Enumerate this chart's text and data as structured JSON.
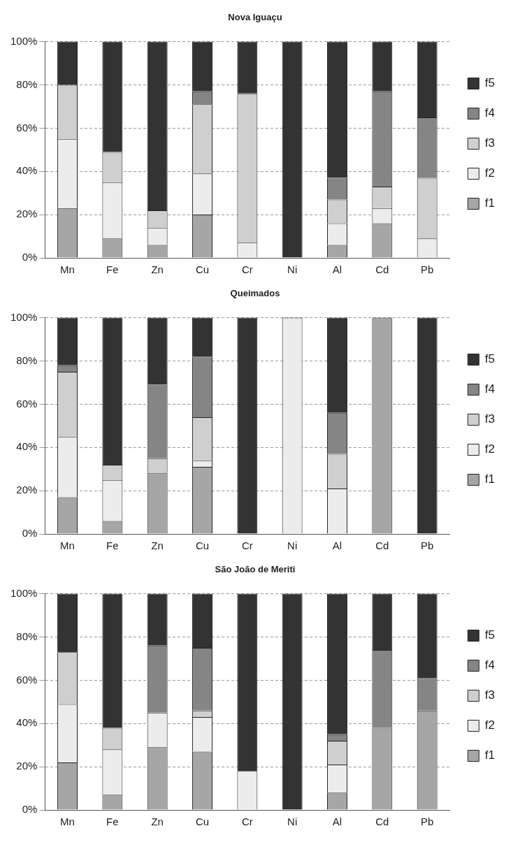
{
  "chart_data": [
    {
      "type": "bar",
      "stacked": true,
      "title": "Nova Iguaçu",
      "categories": [
        "Mn",
        "Fe",
        "Zn",
        "Cu",
        "Cr",
        "Ni",
        "Al",
        "Cd",
        "Pb"
      ],
      "series": [
        {
          "name": "f1",
          "color": "#a6a6a6",
          "values": [
            23,
            9,
            6,
            20,
            0,
            0,
            6,
            16,
            0
          ]
        },
        {
          "name": "f2",
          "color": "#ececec",
          "values": [
            32,
            26,
            8,
            19,
            7,
            0,
            10,
            7,
            9
          ]
        },
        {
          "name": "f3",
          "color": "#cfcfcf",
          "values": [
            25,
            14,
            8,
            32,
            69,
            0,
            11,
            10,
            28
          ]
        },
        {
          "name": "f4",
          "color": "#858585",
          "values": [
            0,
            0,
            0,
            6,
            0,
            0,
            10,
            44,
            28
          ]
        },
        {
          "name": "f5",
          "color": "#333333",
          "values": [
            20,
            51,
            78,
            23,
            24,
            100,
            63,
            23,
            35
          ]
        }
      ],
      "ylim": [
        0,
        100
      ],
      "yticks": [
        {
          "value": 0,
          "label": "0%"
        },
        {
          "value": 20,
          "label": "20%"
        },
        {
          "value": 40,
          "label": "40%"
        },
        {
          "value": 60,
          "label": "60%"
        },
        {
          "value": 80,
          "label": "80%"
        },
        {
          "value": 100,
          "label": "100%"
        }
      ],
      "grid": "y",
      "legend": "right"
    },
    {
      "type": "bar",
      "stacked": true,
      "title": "Queimados",
      "categories": [
        "Mn",
        "Fe",
        "Zn",
        "Cu",
        "Cr",
        "Ni",
        "Al",
        "Cd",
        "Pb"
      ],
      "series": [
        {
          "name": "f1",
          "color": "#a6a6a6",
          "values": [
            17,
            6,
            28,
            31,
            0,
            0,
            0,
            100,
            0
          ]
        },
        {
          "name": "f2",
          "color": "#ececec",
          "values": [
            28,
            19,
            0,
            3,
            0,
            100,
            21,
            0,
            0
          ]
        },
        {
          "name": "f3",
          "color": "#cfcfcf",
          "values": [
            30,
            7,
            7,
            20,
            0,
            0,
            16,
            0,
            0
          ]
        },
        {
          "name": "f4",
          "color": "#858585",
          "values": [
            3,
            0,
            34,
            28,
            0,
            0,
            19,
            0,
            0
          ]
        },
        {
          "name": "f5",
          "color": "#333333",
          "values": [
            22,
            68,
            31,
            18,
            100,
            0,
            44,
            0,
            100
          ]
        }
      ],
      "ylim": [
        0,
        100
      ],
      "yticks": [
        {
          "value": 0,
          "label": "0%"
        },
        {
          "value": 20,
          "label": "20%"
        },
        {
          "value": 40,
          "label": "40%"
        },
        {
          "value": 60,
          "label": "60%"
        },
        {
          "value": 80,
          "label": "80%"
        },
        {
          "value": 100,
          "label": "100%"
        }
      ],
      "grid": "y",
      "legend": "right"
    },
    {
      "type": "bar",
      "stacked": true,
      "title": "São João de Meriti",
      "categories": [
        "Mn",
        "Fe",
        "Zn",
        "Cu",
        "Cr",
        "Ni",
        "Al",
        "Cd",
        "Pb"
      ],
      "series": [
        {
          "name": "f1",
          "color": "#a6a6a6",
          "values": [
            22,
            7,
            29,
            27,
            0,
            0,
            8,
            38,
            46
          ]
        },
        {
          "name": "f2",
          "color": "#ececec",
          "values": [
            27,
            21,
            16,
            16,
            18,
            0,
            13,
            0,
            0
          ]
        },
        {
          "name": "f3",
          "color": "#cfcfcf",
          "values": [
            24,
            10,
            0,
            3,
            0,
            0,
            11,
            0,
            0
          ]
        },
        {
          "name": "f4",
          "color": "#858585",
          "values": [
            0,
            0,
            31,
            29,
            0,
            0,
            3,
            36,
            15
          ]
        },
        {
          "name": "f5",
          "color": "#333333",
          "values": [
            27,
            62,
            24,
            25,
            82,
            100,
            65,
            26,
            39
          ]
        }
      ],
      "ylim": [
        0,
        100
      ],
      "yticks": [
        {
          "value": 0,
          "label": "0%"
        },
        {
          "value": 20,
          "label": "20%"
        },
        {
          "value": 40,
          "label": "40%"
        },
        {
          "value": 60,
          "label": "60%"
        },
        {
          "value": 80,
          "label": "80%"
        },
        {
          "value": 100,
          "label": "100%"
        }
      ],
      "grid": "y",
      "legend": "right"
    }
  ]
}
